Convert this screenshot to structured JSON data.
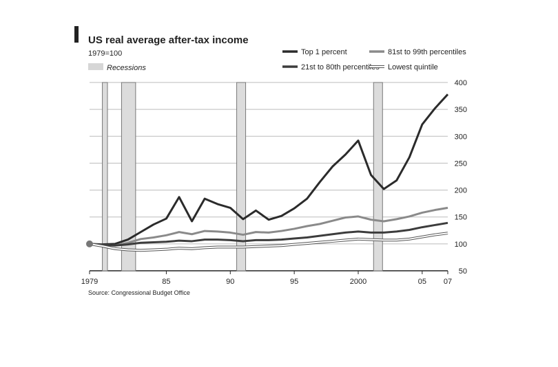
{
  "chart_data": {
    "type": "line",
    "title": "US real average after-tax income",
    "subtitle": "1979=100",
    "source": "Source: Congressional Budget Office",
    "xlim": [
      1979,
      2007
    ],
    "ylim": [
      50,
      400
    ],
    "y_ticks": [
      50,
      100,
      150,
      200,
      250,
      300,
      350,
      400
    ],
    "x_ticks": [
      {
        "value": 1979,
        "label": "1979"
      },
      {
        "value": 1985,
        "label": "85"
      },
      {
        "value": 1990,
        "label": "90"
      },
      {
        "value": 1995,
        "label": "95"
      },
      {
        "value": 2000,
        "label": "2000"
      },
      {
        "value": 2005,
        "label": "05"
      },
      {
        "value": 2007,
        "label": "07"
      }
    ],
    "grid": "horizontal",
    "y_axis_position": "right",
    "legend_placement": "top",
    "recession_label": "Recessions",
    "recessions": [
      [
        1980.0,
        1980.4
      ],
      [
        1981.5,
        1982.6
      ],
      [
        1990.5,
        1991.2
      ],
      [
        2001.2,
        2001.9
      ]
    ],
    "x": [
      1979,
      1980,
      1981,
      1982,
      1983,
      1984,
      1985,
      1986,
      1987,
      1988,
      1989,
      1990,
      1991,
      1992,
      1993,
      1994,
      1995,
      1996,
      1997,
      1998,
      1999,
      2000,
      2001,
      2002,
      2003,
      2004,
      2005,
      2006,
      2007
    ],
    "series": [
      {
        "name": "Top 1 percent",
        "color": "#2b2b2b",
        "style": "thick",
        "values": [
          100,
          99,
          100,
          108,
          122,
          136,
          147,
          187,
          142,
          184,
          174,
          167,
          146,
          162,
          145,
          152,
          166,
          184,
          215,
          244,
          266,
          292,
          228,
          202,
          218,
          261,
          322,
          352,
          378
        ]
      },
      {
        "name": "81st to 99th percentiles",
        "color": "#8a8a8a",
        "style": "thick",
        "values": [
          100,
          98,
          97,
          102,
          109,
          112,
          116,
          122,
          118,
          124,
          123,
          121,
          117,
          122,
          121,
          124,
          128,
          133,
          137,
          143,
          149,
          151,
          145,
          142,
          146,
          151,
          158,
          163,
          167
        ]
      },
      {
        "name": "21st to 80th percentiles",
        "color": "#3c3c3c",
        "style": "thick",
        "values": [
          100,
          98,
          97,
          99,
          102,
          103,
          104,
          106,
          105,
          108,
          108,
          107,
          105,
          107,
          107,
          108,
          110,
          112,
          115,
          118,
          121,
          123,
          121,
          121,
          123,
          126,
          131,
          135,
          139
        ]
      },
      {
        "name": "Lowest quintile",
        "color": "#bdbdbd",
        "style": "outlined",
        "values": [
          100,
          96,
          91,
          89,
          88,
          89,
          90,
          92,
          91,
          93,
          94,
          94,
          94,
          95,
          96,
          97,
          99,
          101,
          103,
          105,
          107,
          109,
          108,
          107,
          107,
          109,
          113,
          117,
          120
        ]
      }
    ]
  }
}
